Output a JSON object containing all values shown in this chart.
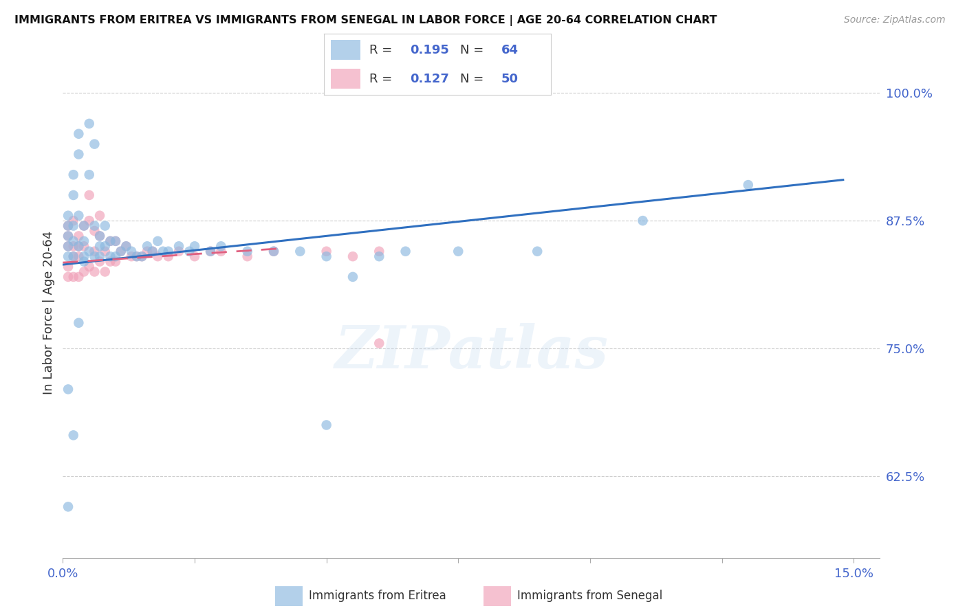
{
  "title": "IMMIGRANTS FROM ERITREA VS IMMIGRANTS FROM SENEGAL IN LABOR FORCE | AGE 20-64 CORRELATION CHART",
  "source": "Source: ZipAtlas.com",
  "ylabel": "In Labor Force | Age 20-64",
  "xlim": [
    0.0,
    0.155
  ],
  "ylim": [
    0.545,
    1.025
  ],
  "xtick_positions": [
    0.0,
    0.025,
    0.05,
    0.075,
    0.1,
    0.125,
    0.15
  ],
  "xticklabels": [
    "0.0%",
    "",
    "",
    "",
    "",
    "",
    "15.0%"
  ],
  "ytick_positions": [
    0.625,
    0.75,
    0.875,
    1.0
  ],
  "yticklabels": [
    "62.5%",
    "75.0%",
    "87.5%",
    "100.0%"
  ],
  "eritrea_color": "#8ab8e0",
  "senegal_color": "#f0a0b8",
  "eritrea_line_color": "#3070c0",
  "senegal_line_color": "#e06080",
  "legend_eritrea_R": "0.195",
  "legend_eritrea_N": "64",
  "legend_senegal_R": "0.127",
  "legend_senegal_N": "50",
  "watermark": "ZIPatlas",
  "tick_label_color": "#4466cc",
  "axis_label_color": "#333333",
  "grid_color": "#cccccc",
  "title_color": "#111111",
  "source_color": "#999999",
  "eritrea_x": [
    0.001,
    0.001,
    0.001,
    0.001,
    0.001,
    0.002,
    0.002,
    0.002,
    0.002,
    0.002,
    0.003,
    0.003,
    0.003,
    0.003,
    0.004,
    0.004,
    0.004,
    0.004,
    0.005,
    0.005,
    0.005,
    0.006,
    0.006,
    0.006,
    0.007,
    0.007,
    0.007,
    0.008,
    0.008,
    0.009,
    0.009,
    0.01,
    0.01,
    0.011,
    0.012,
    0.013,
    0.014,
    0.015,
    0.016,
    0.017,
    0.018,
    0.019,
    0.02,
    0.022,
    0.024,
    0.025,
    0.028,
    0.03,
    0.035,
    0.04,
    0.045,
    0.05,
    0.055,
    0.06,
    0.065,
    0.075,
    0.09,
    0.11,
    0.13,
    0.001,
    0.001,
    0.002,
    0.003,
    0.05
  ],
  "eritrea_y": [
    0.87,
    0.88,
    0.85,
    0.84,
    0.86,
    0.9,
    0.92,
    0.87,
    0.855,
    0.84,
    0.88,
    0.96,
    0.94,
    0.85,
    0.87,
    0.855,
    0.84,
    0.835,
    0.97,
    0.92,
    0.845,
    0.95,
    0.87,
    0.84,
    0.86,
    0.85,
    0.84,
    0.87,
    0.85,
    0.855,
    0.84,
    0.855,
    0.84,
    0.845,
    0.85,
    0.845,
    0.84,
    0.84,
    0.85,
    0.845,
    0.855,
    0.845,
    0.845,
    0.85,
    0.845,
    0.85,
    0.845,
    0.85,
    0.845,
    0.845,
    0.845,
    0.84,
    0.82,
    0.84,
    0.845,
    0.845,
    0.845,
    0.875,
    0.91,
    0.595,
    0.71,
    0.665,
    0.775,
    0.675
  ],
  "senegal_x": [
    0.001,
    0.001,
    0.001,
    0.001,
    0.001,
    0.002,
    0.002,
    0.002,
    0.002,
    0.003,
    0.003,
    0.003,
    0.003,
    0.004,
    0.004,
    0.004,
    0.005,
    0.005,
    0.005,
    0.006,
    0.006,
    0.006,
    0.007,
    0.007,
    0.007,
    0.008,
    0.008,
    0.009,
    0.009,
    0.01,
    0.01,
    0.011,
    0.012,
    0.013,
    0.014,
    0.015,
    0.016,
    0.017,
    0.018,
    0.02,
    0.022,
    0.025,
    0.028,
    0.03,
    0.035,
    0.04,
    0.05,
    0.055,
    0.06,
    0.06
  ],
  "senegal_y": [
    0.85,
    0.83,
    0.87,
    0.86,
    0.82,
    0.875,
    0.85,
    0.84,
    0.82,
    0.86,
    0.85,
    0.84,
    0.82,
    0.87,
    0.85,
    0.825,
    0.9,
    0.875,
    0.83,
    0.865,
    0.845,
    0.825,
    0.88,
    0.86,
    0.835,
    0.845,
    0.825,
    0.855,
    0.835,
    0.855,
    0.835,
    0.845,
    0.85,
    0.84,
    0.84,
    0.84,
    0.845,
    0.845,
    0.84,
    0.84,
    0.845,
    0.84,
    0.845,
    0.845,
    0.84,
    0.845,
    0.845,
    0.84,
    0.755,
    0.845
  ],
  "eritrea_trend_x": [
    0.0,
    0.148
  ],
  "eritrea_trend_y": [
    0.832,
    0.915
  ],
  "senegal_trend_x": [
    0.0,
    0.042
  ],
  "senegal_trend_y": [
    0.834,
    0.848
  ]
}
